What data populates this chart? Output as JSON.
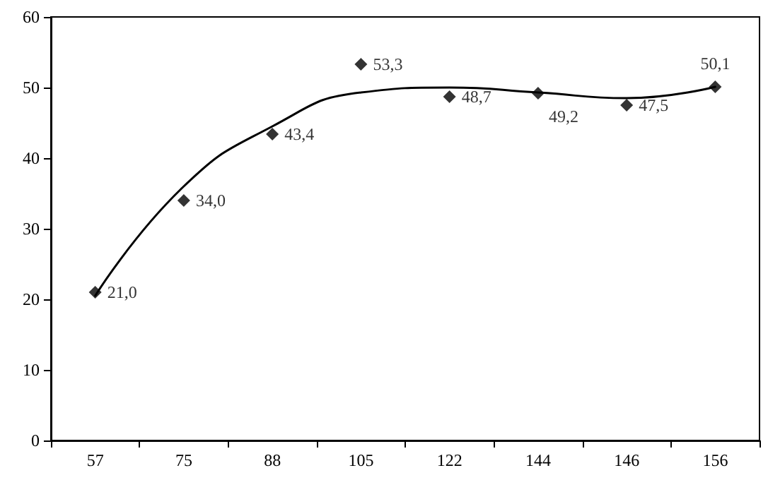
{
  "chart_data": {
    "type": "scatter",
    "categories": [
      "57",
      "75",
      "88",
      "105",
      "122",
      "144",
      "146",
      "156"
    ],
    "ylim": [
      0,
      60
    ],
    "yticks": [
      0,
      10,
      20,
      30,
      40,
      50,
      60
    ],
    "grid": false,
    "marker": "diamond",
    "series": [
      {
        "color": "#000000",
        "values": [
          21.0,
          34.0,
          43.4,
          53.3,
          48.7,
          49.2,
          47.5,
          50.1
        ],
        "value_labels": [
          "21,0",
          "34,0",
          "43,4",
          "53,3",
          "48,7",
          "49,2",
          "47,5",
          "50,1"
        ]
      },
      {
        "type": "line",
        "color": "#000000",
        "line_style": "solid",
        "marker": "none",
        "x": [
          "57",
          "75",
          "88",
          "105",
          "122",
          "144",
          "146",
          "156"
        ],
        "values": [
          20.5,
          36,
          44.5,
          49.3,
          50,
          49.3,
          48.5,
          50.1
        ]
      }
    ]
  }
}
